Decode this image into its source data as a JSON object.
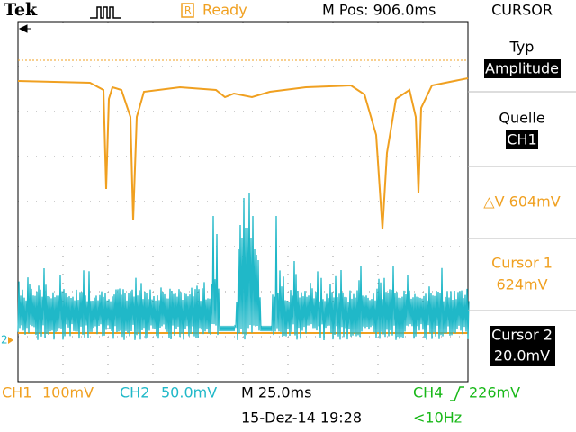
{
  "header": {
    "brand": "Tek",
    "status": "Ready",
    "position": "M Pos: 906.0ms",
    "menu_title": "CURSOR"
  },
  "menu": {
    "type_label": "Typ",
    "type_value": "Amplitude",
    "source_label": "Quelle",
    "source_value": "CH1",
    "delta": "△V 604mV",
    "cursor1_label": "Cursor 1",
    "cursor1_value": "624mV",
    "cursor2_label": "Cursor 2",
    "cursor2_value": "20.0mV"
  },
  "screen": {
    "channel_marker": "2"
  },
  "footer": {
    "ch1_name": "CH1",
    "ch1_scale": "100mV",
    "ch2_name": "CH2",
    "ch2_scale": "50.0mV",
    "timebase": "M 25.0ms",
    "trigger_source": "CH4",
    "trigger_level": "226mV",
    "date_time": "15-Dez-14 19:28",
    "frequency": "<10Hz"
  }
}
